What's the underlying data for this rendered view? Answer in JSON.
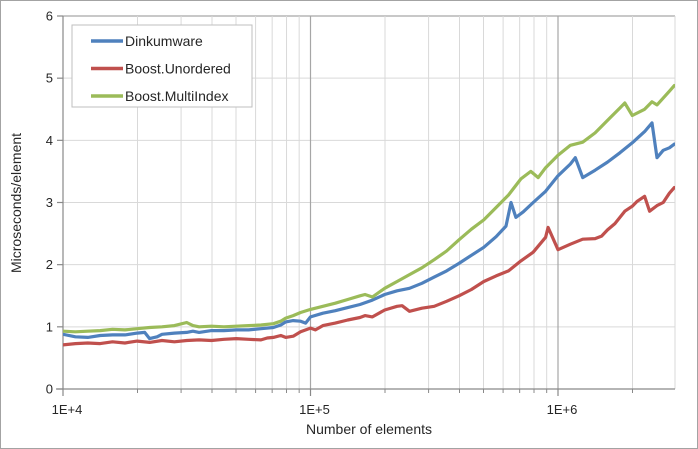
{
  "chart_data": {
    "type": "line",
    "title": "",
    "xlabel": "Number of elements",
    "ylabel": "Microseconds/element",
    "grid": true,
    "legend_position": "top-left",
    "x_axis": {
      "scale": "log",
      "min": 10000,
      "max": 2940000,
      "ticks": [
        {
          "value": 10000,
          "label": "1E+4"
        },
        {
          "value": 100000,
          "label": "1E+5"
        },
        {
          "value": 1000000,
          "label": "1E+6"
        }
      ]
    },
    "y_axis": {
      "min": 0,
      "max": 6,
      "ticks": [
        "0",
        "1",
        "2",
        "3",
        "4",
        "5",
        "6"
      ]
    },
    "colors": {
      "minor_grid": "#d9d9d9",
      "major_grid": "#a6a6a6",
      "axis": "#898989",
      "legend_border": "#bfbfbf",
      "text": "#262626"
    },
    "series": [
      {
        "name": "Dinkumware",
        "color": "#4F81BD",
        "points": [
          [
            10000,
            0.88
          ],
          [
            11220,
            0.84
          ],
          [
            12590,
            0.83
          ],
          [
            14130,
            0.86
          ],
          [
            15850,
            0.87
          ],
          [
            17780,
            0.87
          ],
          [
            19950,
            0.9
          ],
          [
            21380,
            0.91
          ],
          [
            22390,
            0.81
          ],
          [
            23990,
            0.84
          ],
          [
            25120,
            0.88
          ],
          [
            28180,
            0.9
          ],
          [
            31620,
            0.91
          ],
          [
            33500,
            0.93
          ],
          [
            35480,
            0.91
          ],
          [
            39810,
            0.94
          ],
          [
            44670,
            0.94
          ],
          [
            50120,
            0.95
          ],
          [
            56230,
            0.95
          ],
          [
            63100,
            0.97
          ],
          [
            70790,
            0.99
          ],
          [
            75860,
            1.03
          ],
          [
            79430,
            1.08
          ],
          [
            85110,
            1.1
          ],
          [
            91200,
            1.09
          ],
          [
            95500,
            1.06
          ],
          [
            100000,
            1.16
          ],
          [
            112200,
            1.22
          ],
          [
            125900,
            1.26
          ],
          [
            141300,
            1.31
          ],
          [
            158500,
            1.36
          ],
          [
            177800,
            1.43
          ],
          [
            199500,
            1.52
          ],
          [
            223900,
            1.58
          ],
          [
            251200,
            1.62
          ],
          [
            281800,
            1.7
          ],
          [
            316200,
            1.8
          ],
          [
            354800,
            1.9
          ],
          [
            398100,
            2.02
          ],
          [
            446700,
            2.15
          ],
          [
            501200,
            2.28
          ],
          [
            562300,
            2.45
          ],
          [
            616600,
            2.62
          ],
          [
            645700,
            3.0
          ],
          [
            676100,
            2.76
          ],
          [
            724400,
            2.85
          ],
          [
            794300,
            3.0
          ],
          [
            891300,
            3.18
          ],
          [
            1000000,
            3.43
          ],
          [
            1122000,
            3.62
          ],
          [
            1174900,
            3.72
          ],
          [
            1258900,
            3.4
          ],
          [
            1412500,
            3.52
          ],
          [
            1584900,
            3.65
          ],
          [
            1778300,
            3.8
          ],
          [
            1995300,
            3.96
          ],
          [
            2238700,
            4.14
          ],
          [
            2398800,
            4.28
          ],
          [
            2511900,
            3.72
          ],
          [
            2661000,
            3.84
          ],
          [
            2818400,
            3.88
          ],
          [
            2951200,
            3.94
          ]
        ]
      },
      {
        "name": "Boost.Unordered",
        "color": "#C0504D",
        "points": [
          [
            10000,
            0.71
          ],
          [
            11220,
            0.73
          ],
          [
            12590,
            0.74
          ],
          [
            14130,
            0.73
          ],
          [
            15850,
            0.76
          ],
          [
            17780,
            0.74
          ],
          [
            19950,
            0.77
          ],
          [
            22390,
            0.75
          ],
          [
            25120,
            0.78
          ],
          [
            28180,
            0.76
          ],
          [
            31620,
            0.78
          ],
          [
            35480,
            0.79
          ],
          [
            39810,
            0.78
          ],
          [
            44670,
            0.8
          ],
          [
            50120,
            0.81
          ],
          [
            56230,
            0.8
          ],
          [
            63100,
            0.79
          ],
          [
            66830,
            0.82
          ],
          [
            70790,
            0.83
          ],
          [
            75860,
            0.86
          ],
          [
            79430,
            0.83
          ],
          [
            85110,
            0.85
          ],
          [
            91200,
            0.92
          ],
          [
            100000,
            0.98
          ],
          [
            104700,
            0.95
          ],
          [
            112200,
            1.02
          ],
          [
            125900,
            1.06
          ],
          [
            141300,
            1.11
          ],
          [
            158500,
            1.15
          ],
          [
            166000,
            1.18
          ],
          [
            177800,
            1.16
          ],
          [
            199500,
            1.27
          ],
          [
            223900,
            1.33
          ],
          [
            234400,
            1.34
          ],
          [
            251200,
            1.25
          ],
          [
            281800,
            1.3
          ],
          [
            316200,
            1.33
          ],
          [
            354800,
            1.41
          ],
          [
            398100,
            1.5
          ],
          [
            446700,
            1.6
          ],
          [
            501200,
            1.73
          ],
          [
            562300,
            1.82
          ],
          [
            631000,
            1.9
          ],
          [
            707900,
            2.06
          ],
          [
            794300,
            2.2
          ],
          [
            891300,
            2.44
          ],
          [
            912000,
            2.6
          ],
          [
            1000000,
            2.24
          ],
          [
            1122000,
            2.33
          ],
          [
            1258900,
            2.41
          ],
          [
            1412500,
            2.42
          ],
          [
            1500000,
            2.46
          ],
          [
            1584900,
            2.56
          ],
          [
            1698200,
            2.66
          ],
          [
            1778300,
            2.76
          ],
          [
            1862100,
            2.86
          ],
          [
            1995300,
            2.94
          ],
          [
            2089300,
            3.02
          ],
          [
            2238700,
            3.1
          ],
          [
            2344200,
            2.86
          ],
          [
            2511900,
            2.95
          ],
          [
            2661000,
            3.0
          ],
          [
            2818400,
            3.15
          ],
          [
            2951200,
            3.24
          ]
        ]
      },
      {
        "name": "Boost.MultiIndex",
        "color": "#9BBB59",
        "points": [
          [
            10000,
            0.93
          ],
          [
            11220,
            0.92
          ],
          [
            12590,
            0.93
          ],
          [
            14130,
            0.94
          ],
          [
            15850,
            0.96
          ],
          [
            17780,
            0.95
          ],
          [
            19950,
            0.97
          ],
          [
            22390,
            0.99
          ],
          [
            25120,
            1.0
          ],
          [
            28180,
            1.02
          ],
          [
            31620,
            1.07
          ],
          [
            33500,
            1.02
          ],
          [
            35480,
            1.0
          ],
          [
            39810,
            1.01
          ],
          [
            44670,
            1.0
          ],
          [
            50120,
            1.01
          ],
          [
            56230,
            1.02
          ],
          [
            63100,
            1.03
          ],
          [
            70790,
            1.05
          ],
          [
            75860,
            1.09
          ],
          [
            79430,
            1.14
          ],
          [
            85110,
            1.18
          ],
          [
            91200,
            1.23
          ],
          [
            100000,
            1.28
          ],
          [
            112200,
            1.33
          ],
          [
            125900,
            1.38
          ],
          [
            141300,
            1.44
          ],
          [
            158500,
            1.5
          ],
          [
            166000,
            1.52
          ],
          [
            177800,
            1.48
          ],
          [
            199500,
            1.62
          ],
          [
            223900,
            1.73
          ],
          [
            251200,
            1.84
          ],
          [
            281800,
            1.95
          ],
          [
            316200,
            2.08
          ],
          [
            354800,
            2.22
          ],
          [
            398100,
            2.4
          ],
          [
            446700,
            2.57
          ],
          [
            501200,
            2.72
          ],
          [
            562300,
            2.92
          ],
          [
            631000,
            3.12
          ],
          [
            707900,
            3.38
          ],
          [
            776200,
            3.5
          ],
          [
            831800,
            3.4
          ],
          [
            891300,
            3.56
          ],
          [
            1000000,
            3.76
          ],
          [
            1122000,
            3.92
          ],
          [
            1258900,
            3.97
          ],
          [
            1412500,
            4.12
          ],
          [
            1584900,
            4.32
          ],
          [
            1778300,
            4.52
          ],
          [
            1862100,
            4.6
          ],
          [
            1995300,
            4.4
          ],
          [
            2238700,
            4.5
          ],
          [
            2398800,
            4.62
          ],
          [
            2511900,
            4.57
          ],
          [
            2661000,
            4.68
          ],
          [
            2818400,
            4.79
          ],
          [
            2951200,
            4.88
          ]
        ]
      }
    ]
  }
}
